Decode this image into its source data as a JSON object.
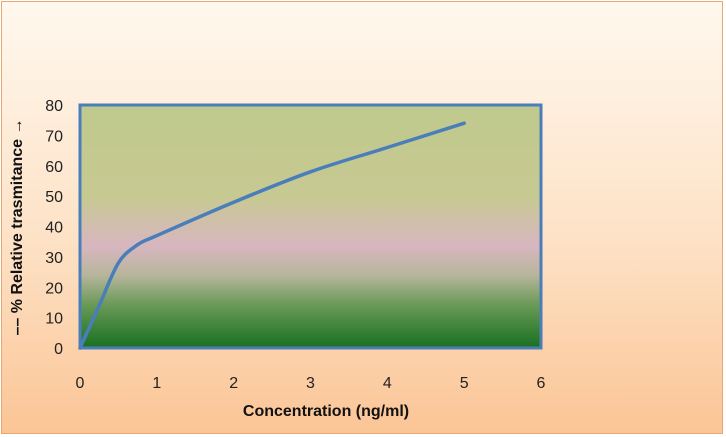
{
  "chart_data": {
    "type": "line",
    "title": "",
    "xlabel": "Concentration (ng/ml)",
    "ylabel": "–– % Relative trasmitance →",
    "xlim": [
      0,
      6
    ],
    "ylim": [
      0,
      80
    ],
    "x_ticks": [
      "0",
      "1",
      "2",
      "3",
      "4",
      "5",
      "6"
    ],
    "y_ticks": [
      "0",
      "10",
      "20",
      "30",
      "40",
      "50",
      "60",
      "70",
      "80"
    ],
    "grid": false,
    "legend": "none",
    "series": [
      {
        "color": "#4a7ebb",
        "x": [
          0,
          0.25,
          0.5,
          0.75,
          1,
          2,
          3,
          4,
          5
        ],
        "y": [
          0,
          14,
          28,
          34,
          37,
          48,
          58,
          66,
          74
        ]
      }
    ],
    "colors": {
      "line": "#4a7ebb",
      "plot_border": "#4a7ebb",
      "background_top": "#fff8ee",
      "background_bottom": "#fbc596"
    }
  }
}
